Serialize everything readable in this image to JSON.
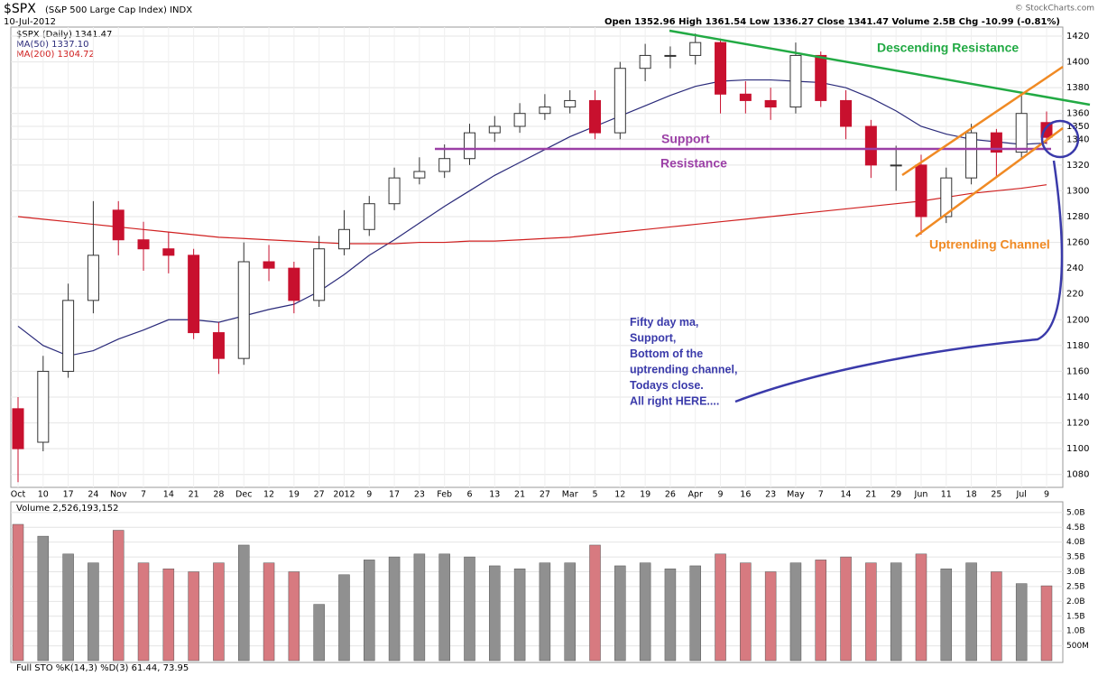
{
  "header": {
    "symbol": "$SPX",
    "name": "(S&P 500 Large Cap Index) INDX",
    "date": "10-Jul-2012",
    "quote": "Open 1352.96  High 1361.54  Low 1336.27  Close 1341.47  Volume 2.5B  Chg -10.99 (-0.81%)",
    "credit": "© StockCharts.com"
  },
  "chart_data": [
    {
      "type": "candlestick",
      "legend": [
        "$SPX (Daily) 1341.47",
        "MA(50) 1337.10",
        "MA(200) 1304.72"
      ],
      "categories": [
        "Oct",
        "10",
        "17",
        "24",
        "Nov",
        "7",
        "14",
        "21",
        "28",
        "Dec",
        "12",
        "19",
        "27",
        "2012",
        "9",
        "17",
        "23",
        "Feb",
        "6",
        "13",
        "21",
        "27",
        "Mar",
        "5",
        "12",
        "19",
        "26",
        "Apr",
        "9",
        "16",
        "23",
        "May",
        "7",
        "14",
        "21",
        "29",
        "Jun",
        "11",
        "18",
        "25",
        "Jul",
        "9"
      ],
      "open": [
        1131,
        1105,
        1160,
        1215,
        1285,
        1262,
        1255,
        1250,
        1190,
        1170,
        1245,
        1240,
        1215,
        1255,
        1270,
        1290,
        1310,
        1315,
        1325,
        1345,
        1350,
        1360,
        1365,
        1370,
        1345,
        1395,
        1405,
        1405,
        1415,
        1375,
        1370,
        1365,
        1405,
        1370,
        1350,
        1320,
        1320,
        1280,
        1310,
        1345,
        1330,
        1352.96
      ],
      "high": [
        1140,
        1172,
        1228,
        1292,
        1292,
        1276,
        1268,
        1255,
        1198,
        1260,
        1258,
        1245,
        1265,
        1285,
        1296,
        1318,
        1326,
        1336,
        1352,
        1358,
        1368,
        1375,
        1378,
        1378,
        1400,
        1414,
        1412,
        1422,
        1418,
        1385,
        1380,
        1415,
        1408,
        1378,
        1355,
        1335,
        1328,
        1318,
        1352,
        1348,
        1374,
        1361.54
      ],
      "low": [
        1074,
        1098,
        1155,
        1205,
        1250,
        1238,
        1236,
        1185,
        1158,
        1165,
        1230,
        1205,
        1210,
        1250,
        1265,
        1285,
        1305,
        1310,
        1320,
        1338,
        1345,
        1355,
        1360,
        1340,
        1340,
        1385,
        1395,
        1398,
        1360,
        1360,
        1355,
        1360,
        1365,
        1340,
        1310,
        1300,
        1266,
        1275,
        1305,
        1310,
        1325,
        1336.27
      ],
      "close": [
        1100,
        1160,
        1215,
        1250,
        1262,
        1255,
        1250,
        1190,
        1170,
        1245,
        1240,
        1215,
        1255,
        1270,
        1290,
        1310,
        1315,
        1325,
        1345,
        1350,
        1360,
        1365,
        1370,
        1345,
        1395,
        1405,
        1405,
        1415,
        1375,
        1370,
        1365,
        1405,
        1370,
        1350,
        1320,
        1320,
        1280,
        1310,
        1345,
        1330,
        1360,
        1341.47
      ],
      "up_color": "#333333",
      "down_color": "#c8102e",
      "series": [
        {
          "name": "MA(50)",
          "color": "#2a2a7a",
          "values": [
            1195,
            1180,
            1172,
            1176,
            1185,
            1192,
            1200,
            1200,
            1198,
            1203,
            1208,
            1212,
            1222,
            1235,
            1250,
            1262,
            1275,
            1288,
            1300,
            1312,
            1322,
            1332,
            1342,
            1350,
            1358,
            1366,
            1374,
            1381,
            1385,
            1386,
            1386,
            1385,
            1384,
            1380,
            1372,
            1362,
            1350,
            1344,
            1340,
            1338,
            1336,
            1337.1
          ]
        },
        {
          "name": "MA(200)",
          "color": "#d02020",
          "values": [
            1280,
            1278,
            1276,
            1274,
            1272,
            1270,
            1268,
            1266,
            1264,
            1263,
            1262,
            1261,
            1260,
            1259,
            1259,
            1259,
            1260,
            1260,
            1261,
            1261,
            1262,
            1263,
            1264,
            1266,
            1268,
            1270,
            1272,
            1274,
            1276,
            1278,
            1280,
            1282,
            1284,
            1286,
            1288,
            1290,
            1292,
            1295,
            1298,
            1300,
            1302,
            1304.72
          ]
        }
      ],
      "ylim": [
        1070,
        1427
      ],
      "yticks": [
        1080,
        1100,
        1120,
        1140,
        1160,
        1180,
        1200,
        {
          "value": 1220,
          "label": "220"
        },
        {
          "value": 1240,
          "label": "240"
        },
        1260,
        1280,
        1300,
        1320,
        1340,
        1350,
        1360,
        1380,
        1400,
        1420
      ],
      "annotations": {
        "descending": "Descending Resistance",
        "support": "Support",
        "resistance": "Resistance",
        "channel": "Uptrending Channel",
        "note": [
          "Fifty day ma,",
          "Support,",
          "Bottom of the",
          "uptrending channel,",
          "Todays close.",
          "All right HERE...."
        ]
      }
    },
    {
      "type": "bar",
      "legend": "Volume 2,526,193,152",
      "values": [
        4600000000,
        4200000000,
        3600000000,
        3300000000,
        4400000000,
        3300000000,
        3100000000,
        3000000000,
        3300000000,
        3900000000,
        3300000000,
        3000000000,
        1900000000,
        2900000000,
        3400000000,
        3500000000,
        3600000000,
        3600000000,
        3500000000,
        3200000000,
        3100000000,
        3300000000,
        3300000000,
        3900000000,
        3200000000,
        3300000000,
        3100000000,
        3200000000,
        3600000000,
        3300000000,
        3000000000,
        3300000000,
        3400000000,
        3500000000,
        3300000000,
        3300000000,
        3600000000,
        3100000000,
        3300000000,
        3000000000,
        2600000000,
        2526193152
      ],
      "ylim": [
        0,
        5300000000
      ],
      "yticks": [
        {
          "value": 500000000,
          "label": "500M"
        },
        {
          "value": 1000000000,
          "label": "1.0B"
        },
        {
          "value": 1500000000,
          "label": "1.5B"
        },
        {
          "value": 2000000000,
          "label": "2.0B"
        },
        {
          "value": 2500000000,
          "label": "2.5B"
        },
        {
          "value": 3000000000,
          "label": "3.0B"
        },
        {
          "value": 3500000000,
          "label": "3.5B"
        },
        {
          "value": 4000000000,
          "label": "4.0B"
        },
        {
          "value": 4500000000,
          "label": "4.5B"
        },
        {
          "value": 5000000000,
          "label": "5.0B"
        }
      ]
    },
    {
      "type": "indicator",
      "legend": "Full STO %K(14,3) %D(3) 61.44, 73.95"
    }
  ]
}
